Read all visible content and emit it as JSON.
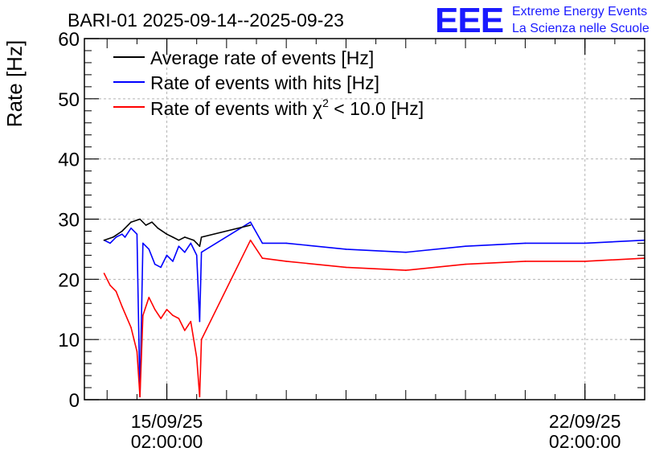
{
  "header": {
    "title": "BARI-01 2025-09-14--2025-09-23",
    "logo_text": "EEE",
    "logo_line1": "Extreme Energy Events",
    "logo_line2": "La Scienza nelle Scuole"
  },
  "colors": {
    "average": "#000000",
    "hits": "#0000ff",
    "chi2": "#ff0000",
    "logo": "#1a1aff",
    "grid": "#b4b4b4"
  },
  "chart_data": {
    "type": "line",
    "ylabel": "Rate [Hz]",
    "xlabel": "",
    "ylim": [
      0,
      60
    ],
    "xlim_days": [
      -1.38,
      8.0
    ],
    "x_unit": "days since 2025-09-15 02:00:00",
    "y_ticks": [
      "0",
      "10",
      "20",
      "30",
      "40",
      "50",
      "60"
    ],
    "x_ticks": [
      {
        "day": 0,
        "date": "15/09/25",
        "time": "02:00:00"
      },
      {
        "day": 7,
        "date": "22/09/25",
        "time": "02:00:00"
      }
    ],
    "legend": {
      "placement": "top-left",
      "avg_label": "Average rate of events [Hz]",
      "hits_label": "Rate of events with hits [Hz]",
      "chi2_prefix": "Rate of events with ",
      "chi2_symbol": "χ",
      "chi2_sup": "2",
      "chi2_suffix": " < 10.0 [Hz]"
    },
    "series": [
      {
        "name": "Average rate of events [Hz]",
        "key": "average",
        "x": [
          -1.05,
          -0.9,
          -0.75,
          -0.6,
          -0.45,
          -0.35,
          -0.25,
          -0.15,
          0.0,
          0.1,
          0.2,
          0.3,
          0.45,
          0.55,
          0.58,
          1.4
        ],
        "y": [
          26.5,
          27.0,
          28.0,
          29.5,
          30.0,
          29.0,
          29.5,
          28.5,
          27.5,
          27.0,
          26.5,
          27.0,
          26.5,
          25.5,
          27.0,
          29.0
        ]
      },
      {
        "name": "Rate of events with hits [Hz]",
        "key": "hits",
        "x": [
          -1.05,
          -0.95,
          -0.85,
          -0.75,
          -0.7,
          -0.6,
          -0.5,
          -0.45,
          -0.4,
          -0.3,
          -0.2,
          -0.1,
          0.0,
          0.1,
          0.2,
          0.3,
          0.4,
          0.5,
          0.55,
          0.58,
          1.4,
          1.6,
          2.0,
          3.0,
          4.0,
          5.0,
          6.0,
          7.0,
          8.0
        ],
        "y": [
          26.5,
          26.0,
          27.0,
          27.5,
          27.0,
          28.5,
          27.5,
          0.5,
          26.0,
          25.0,
          22.5,
          22.0,
          24.0,
          23.0,
          25.5,
          24.5,
          26.0,
          24.0,
          13.0,
          24.5,
          29.5,
          26.0,
          26.0,
          25.0,
          24.5,
          25.5,
          26.0,
          26.0,
          26.5
        ]
      },
      {
        "name": "Rate of events with χ2 < 10.0 [Hz]",
        "key": "chi2",
        "x": [
          -1.05,
          -0.95,
          -0.85,
          -0.75,
          -0.6,
          -0.5,
          -0.45,
          -0.4,
          -0.3,
          -0.2,
          -0.1,
          0.0,
          0.1,
          0.2,
          0.3,
          0.4,
          0.5,
          0.55,
          0.58,
          1.4,
          1.6,
          2.0,
          3.0,
          4.0,
          5.0,
          6.0,
          7.0,
          8.0
        ],
        "y": [
          21.0,
          19.0,
          18.0,
          15.5,
          12.0,
          8.0,
          0.5,
          14.0,
          17.0,
          15.0,
          13.5,
          15.0,
          14.0,
          13.5,
          11.5,
          13.0,
          7.0,
          0.5,
          10.0,
          26.5,
          23.5,
          23.0,
          22.0,
          21.5,
          22.5,
          23.0,
          23.0,
          23.5
        ]
      }
    ]
  }
}
